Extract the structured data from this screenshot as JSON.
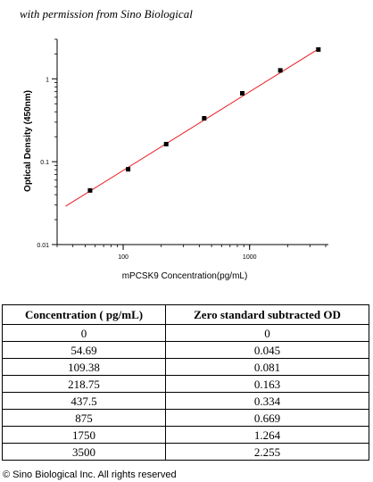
{
  "header": {
    "permission_text": "with permission from Sino Biological"
  },
  "chart_data": {
    "type": "scatter",
    "xlabel": "mPCSK9  Concentration(pg/mL)",
    "ylabel": "Optical Density (450nm)",
    "x_scale": "log",
    "y_scale": "log",
    "xlim": [
      30,
      4200
    ],
    "ylim": [
      0.01,
      3.0
    ],
    "x_ticks": [
      100,
      1000
    ],
    "x_tick_labels": [
      "100",
      "1000"
    ],
    "y_ticks": [
      0.01,
      0.1,
      1
    ],
    "y_tick_labels": [
      "0.01",
      "0.1",
      "1"
    ],
    "grid": false,
    "series": [
      {
        "points": [
          {
            "x": 54.69,
            "y": 0.045
          },
          {
            "x": 109.38,
            "y": 0.081
          },
          {
            "x": 218.75,
            "y": 0.163
          },
          {
            "x": 437.5,
            "y": 0.334
          },
          {
            "x": 875,
            "y": 0.669
          },
          {
            "x": 1750,
            "y": 1.264
          },
          {
            "x": 3500,
            "y": 2.255
          }
        ],
        "marker_color": "#000000"
      }
    ],
    "fit_line": {
      "x": [
        35,
        3600
      ],
      "y": [
        0.029,
        2.35
      ],
      "color": "#e8191f"
    }
  },
  "table": {
    "headers": [
      "Concentration ( pg/mL)",
      "Zero standard subtracted OD"
    ],
    "rows": [
      [
        "0",
        "0"
      ],
      [
        "54.69",
        "0.045"
      ],
      [
        "109.38",
        "0.081"
      ],
      [
        "218.75",
        "0.163"
      ],
      [
        "437.5",
        "0.334"
      ],
      [
        "875",
        "0.669"
      ],
      [
        "1750",
        "1.264"
      ],
      [
        "3500",
        "2.255"
      ]
    ]
  },
  "footer": {
    "copyright": "© Sino Biological Inc. All rights reserved"
  }
}
